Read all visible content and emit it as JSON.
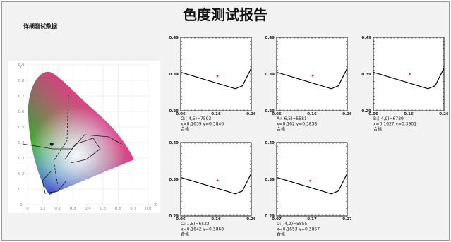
{
  "title": "色度测试报告",
  "section_label": "详细测试数据",
  "chart_data": [
    {
      "type": "scatter",
      "title": "",
      "xlabel": "x",
      "ylabel": "y",
      "xlim": [
        0,
        0.8
      ],
      "ylim": [
        0,
        0.9
      ],
      "xticks": [
        "0",
        "0.1",
        "0.2",
        "0.3",
        "0.4",
        "0.5",
        "0.6",
        "0.7",
        "0.8"
      ],
      "yticks": [
        "0",
        "0.1",
        "0.2",
        "0.3",
        "0.4",
        "0.5",
        "0.6",
        "0.7",
        "0.8",
        "0.9"
      ],
      "grid": true,
      "background": "CIE 1931 chromaticity diagram",
      "points": [
        {
          "x": 0.16,
          "y": 0.39
        }
      ]
    },
    {
      "type": "scatter",
      "panel": 0,
      "xlim": [
        0.06,
        0.26
      ],
      "ylim": [
        0.29,
        0.49
      ],
      "xticks": [
        "0.06",
        "0.16",
        "0.26"
      ],
      "yticks": [
        "0.49",
        "0.39",
        "0.29"
      ],
      "points": [
        {
          "x": 0.1639,
          "y": 0.3846
        }
      ],
      "reference_line": [
        [
          0.06,
          0.395
        ],
        [
          0.215,
          0.35
        ],
        [
          0.235,
          0.358
        ],
        [
          0.26,
          0.406
        ]
      ],
      "labels": [
        "O:(-4,5)=7593",
        "x=0.1639 y=0.3846",
        "合格"
      ]
    },
    {
      "type": "scatter",
      "panel": 1,
      "xlim": [
        0.06,
        0.26
      ],
      "ylim": [
        0.29,
        0.49
      ],
      "xticks": [
        "0.06",
        "0.16",
        "0.26"
      ],
      "yticks": [
        "0.49",
        "0.39",
        "0.29"
      ],
      "points": [
        {
          "x": 0.162,
          "y": 0.3858
        }
      ],
      "reference_line": [
        [
          0.06,
          0.395
        ],
        [
          0.215,
          0.35
        ],
        [
          0.235,
          0.358
        ],
        [
          0.26,
          0.406
        ]
      ],
      "labels": [
        "A:(-6,5)=5581",
        "x=0.162 y=0.3858",
        "合格"
      ]
    },
    {
      "type": "scatter",
      "panel": 2,
      "xlim": [
        0.06,
        0.26
      ],
      "ylim": [
        0.29,
        0.49
      ],
      "xticks": [
        "0.06",
        "0.16",
        "0.26"
      ],
      "yticks": [
        "0.49",
        "0.39",
        "0.29"
      ],
      "points": [
        {
          "x": 0.1627,
          "y": 0.3901
        }
      ],
      "reference_line": [
        [
          0.06,
          0.395
        ],
        [
          0.215,
          0.35
        ],
        [
          0.235,
          0.358
        ],
        [
          0.26,
          0.406
        ]
      ],
      "labels": [
        "B:(-4,9)=6729",
        "x=0.1627 y=0.3901",
        "合格"
      ]
    },
    {
      "type": "scatter",
      "panel": 3,
      "xlim": [
        0.06,
        0.26
      ],
      "ylim": [
        0.29,
        0.49
      ],
      "xticks": [
        "0.06",
        "0.16",
        "0.26"
      ],
      "yticks": [
        "0.49",
        "0.39",
        "0.29"
      ],
      "points": [
        {
          "x": 0.1642,
          "y": 0.3868
        }
      ],
      "reference_line": [
        [
          0.06,
          0.395
        ],
        [
          0.215,
          0.35
        ],
        [
          0.235,
          0.358
        ],
        [
          0.26,
          0.406
        ]
      ],
      "labels": [
        "C:(1,5)=6522",
        "x=0.1642 y=0.3868",
        "合格"
      ]
    },
    {
      "type": "scatter",
      "panel": 4,
      "xlim": [
        0.07,
        0.27
      ],
      "ylim": [
        0.29,
        0.49
      ],
      "xticks": [
        "0.07",
        "0.17",
        "0.27"
      ],
      "yticks": [
        "0.49",
        "0.39",
        "0.29"
      ],
      "points": [
        {
          "x": 0.1653,
          "y": 0.3857
        }
      ],
      "reference_line": [
        [
          0.07,
          0.395
        ],
        [
          0.225,
          0.35
        ],
        [
          0.245,
          0.358
        ],
        [
          0.27,
          0.406
        ]
      ],
      "labels": [
        "D:(-4,2)=5855",
        "x=0.1653 y=0.3857",
        "合格"
      ]
    }
  ],
  "colors": {
    "point": "#ff2a2a",
    "line": "#000000"
  }
}
